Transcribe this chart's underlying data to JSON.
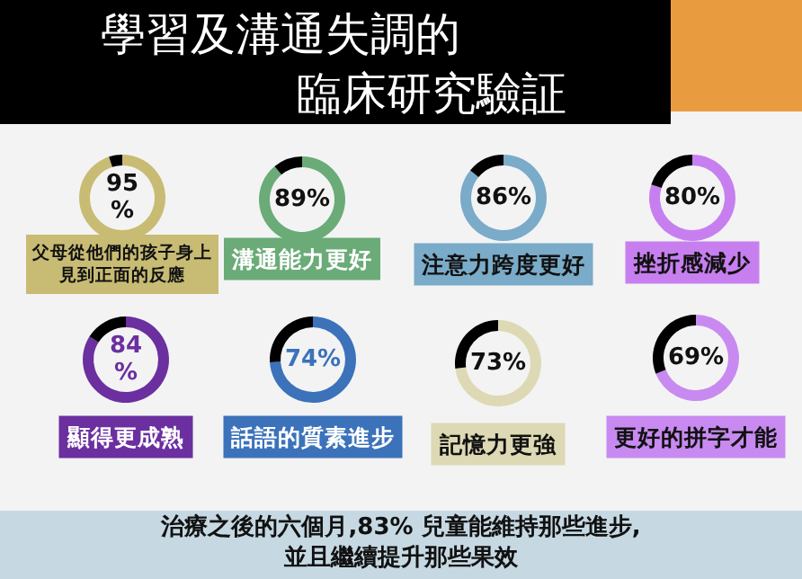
{
  "chart_data": [
    {
      "type": "other",
      "title": "學習及溝通失調的臨床研究驗証",
      "annotations": [
        "治療之後的六個月,83% 兒童能維持那些進步,\n並且繼續提升那些果效"
      ]
    },
    {
      "type": "donut",
      "title": "父母從他們的孩子身上見到正面的反應",
      "categories": [
        null,
        null
      ],
      "values": [
        95,
        5
      ],
      "colors": [
        "#c8bb73",
        "#000000"
      ],
      "value_labels": [
        "95\n%",
        null
      ]
    },
    {
      "type": "donut",
      "title": "溝通能力更好",
      "categories": [
        null,
        null
      ],
      "values": [
        89,
        11
      ],
      "colors": [
        "#6aab78",
        "#000000"
      ],
      "value_labels": [
        "89%",
        null
      ]
    },
    {
      "type": "donut",
      "title": "注意力跨度更好",
      "categories": [
        null,
        null
      ],
      "values": [
        86,
        14
      ],
      "colors": [
        "#7aabc9",
        "#000000"
      ],
      "value_labels": [
        "86%",
        null
      ]
    },
    {
      "type": "donut",
      "title": "挫折感減少",
      "categories": [
        null,
        null
      ],
      "values": [
        80,
        20
      ],
      "colors": [
        "#c77ff0",
        "#000000"
      ],
      "value_labels": [
        "80%",
        null
      ]
    },
    {
      "type": "donut",
      "title": "顯得更成熟",
      "categories": [
        null,
        null
      ],
      "values": [
        84,
        16
      ],
      "colors": [
        "#6b2fa0",
        "#000000"
      ],
      "value_labels": [
        "84\n%",
        null
      ]
    },
    {
      "type": "donut",
      "title": "話語的質素進步",
      "categories": [
        null,
        null
      ],
      "values": [
        74,
        26
      ],
      "colors": [
        "#3b72ba",
        "#000000"
      ],
      "value_labels": [
        "74%",
        null
      ]
    },
    {
      "type": "donut",
      "title": "記憶力更強",
      "categories": [
        null,
        null
      ],
      "values": [
        73,
        27
      ],
      "colors": [
        "#ddd9b4",
        "#000000"
      ],
      "value_labels": [
        "73%",
        null
      ]
    },
    {
      "type": "donut",
      "title": "更好的拼字才能",
      "categories": [
        null,
        null
      ],
      "values": [
        69,
        31
      ],
      "colors": [
        "#c88af0",
        "#000000"
      ],
      "value_labels": [
        "69%",
        null
      ]
    }
  ]
}
